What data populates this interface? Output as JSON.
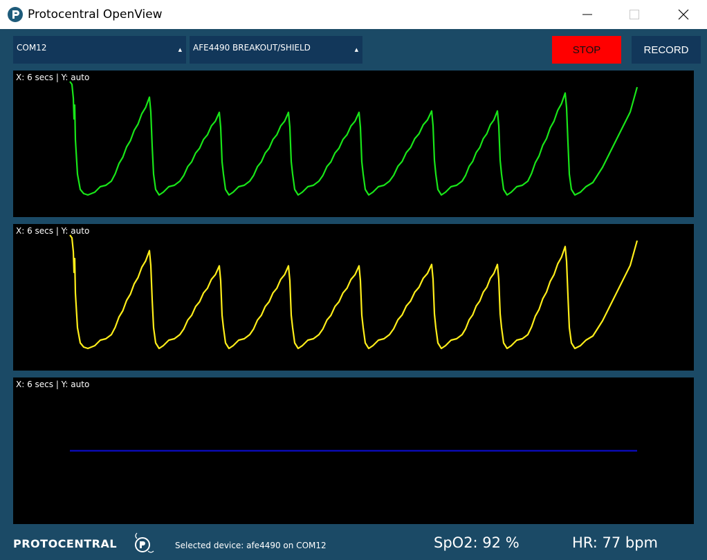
{
  "window": {
    "title": "Protocentral OpenView",
    "icon": "protocentral-app-icon"
  },
  "toolbar": {
    "port_select": "COM12",
    "board_select": "AFE4490 BREAKOUT/SHIELD",
    "stop_label": "STOP",
    "record_label": "RECORD",
    "stop_color": "#ff0000"
  },
  "plots": [
    {
      "label": "X: 6 secs | Y: auto",
      "color": "#19e619"
    },
    {
      "label": "X: 6 secs | Y: auto",
      "color": "#ffee1a"
    },
    {
      "label": "X: 6 secs | Y: auto",
      "color": "#0a0ab4"
    }
  ],
  "footer": {
    "logo_text": "PROTOCENTRAL",
    "status": "Selected device: afe4490 on COM12",
    "spo2": "SpO2: 92 %",
    "hr": "HR: 77 bpm"
  }
}
